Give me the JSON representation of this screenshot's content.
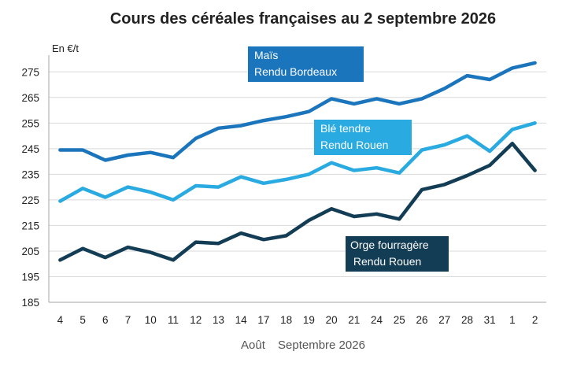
{
  "chart_data": {
    "type": "line",
    "title": "Cours des céréales françaises au 2 septembre 2026",
    "ylabel": "En €/t",
    "xlabel_months": [
      "Août",
      "Septembre 2026"
    ],
    "categories": [
      "4",
      "5",
      "6",
      "7",
      "10",
      "11",
      "12",
      "13",
      "14",
      "17",
      "18",
      "19",
      "20",
      "21",
      "24",
      "25",
      "26",
      "27",
      "28",
      "31",
      "1",
      "2"
    ],
    "ylim": [
      185,
      280
    ],
    "yticks": [
      185,
      195,
      205,
      215,
      225,
      235,
      245,
      255,
      265,
      275
    ],
    "grid": true,
    "legend": "inline",
    "series": [
      {
        "name_lines": [
          "Maïs",
          "Rendu Bordeaux"
        ],
        "color": "#1b75bc",
        "values": [
          244.5,
          244.5,
          240.5,
          242.5,
          243.5,
          241.5,
          249,
          253,
          254,
          256,
          257.5,
          259.5,
          264.5,
          262.5,
          264.5,
          262.5,
          264.5,
          268.5,
          273.5,
          272,
          276.5,
          278.5
        ]
      },
      {
        "name_lines": [
          "Blé tendre",
          "Rendu Rouen"
        ],
        "color": "#29aae1",
        "values": [
          224.5,
          229.5,
          226,
          230,
          228,
          225,
          230.5,
          230,
          234,
          231.5,
          233,
          235,
          239.5,
          236.5,
          237.5,
          235.5,
          244.5,
          246.5,
          250,
          244,
          252.5,
          255
        ]
      },
      {
        "name_lines": [
          "Orge fourragère",
          " Rendu Rouen"
        ],
        "color": "#133c55",
        "values": [
          201.5,
          206,
          202.5,
          206.5,
          204.5,
          201.5,
          208.5,
          208,
          212,
          209.5,
          211,
          217,
          221.5,
          218.5,
          219.5,
          217.5,
          229,
          231,
          234.5,
          238.5,
          247,
          236.5
        ]
      }
    ]
  }
}
